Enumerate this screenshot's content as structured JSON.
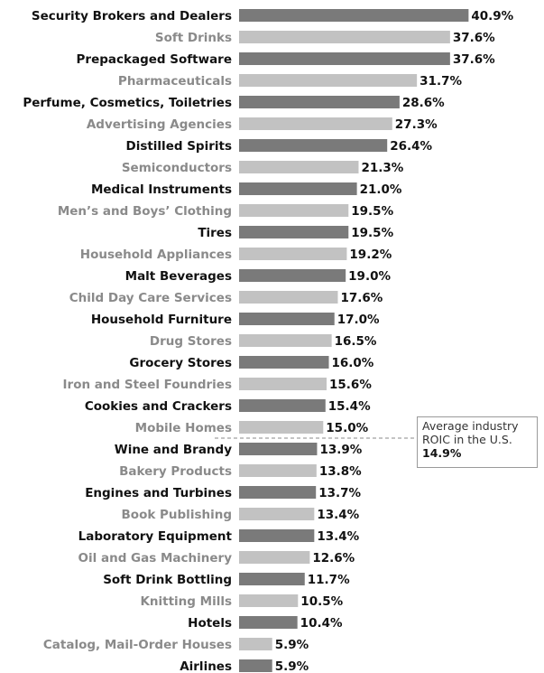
{
  "chart_data": {
    "type": "bar",
    "orientation": "horizontal",
    "unit": "%",
    "categories": [
      "Security Brokers and Dealers",
      "Soft Drinks",
      "Prepackaged Software",
      "Pharmaceuticals",
      "Perfume, Cosmetics, Toiletries",
      "Advertising Agencies",
      "Distilled Spirits",
      "Semiconductors",
      "Medical Instruments",
      "Men’s and Boys’ Clothing",
      "Tires",
      "Household Appliances",
      "Malt Beverages",
      "Child Day Care Services",
      "Household Furniture",
      "Drug Stores",
      "Grocery Stores",
      "Iron and Steel Foundries",
      "Cookies and Crackers",
      "Mobile Homes",
      "Wine and Brandy",
      "Bakery Products",
      "Engines and Turbines",
      "Book Publishing",
      "Laboratory Equipment",
      "Oil and Gas Machinery",
      "Soft Drink Bottling",
      "Knitting Mills",
      "Hotels",
      "Catalog, Mail-Order Houses",
      "Airlines"
    ],
    "values": [
      40.9,
      37.6,
      37.6,
      31.7,
      28.6,
      27.3,
      26.4,
      21.3,
      21.0,
      19.5,
      19.5,
      19.2,
      19.0,
      17.6,
      17.0,
      16.5,
      16.0,
      15.6,
      15.4,
      15.0,
      13.9,
      13.8,
      13.7,
      13.4,
      13.4,
      12.6,
      11.7,
      10.5,
      10.4,
      5.9,
      5.9
    ],
    "value_labels": [
      "40.9%",
      "37.6%",
      "37.6%",
      "31.7%",
      "28.6%",
      "27.3%",
      "26.4%",
      "21.3%",
      "21.0%",
      "19.5%",
      "19.5%",
      "19.2%",
      "19.0%",
      "17.6%",
      "17.0%",
      "16.5%",
      "16.0%",
      "15.6%",
      "15.4%",
      "15.0%",
      "13.9%",
      "13.8%",
      "13.7%",
      "13.4%",
      "13.4%",
      "12.6%",
      "11.7%",
      "10.5%",
      "10.4%",
      "5.9%",
      "5.9%"
    ],
    "colors": {
      "dark_bar": "#7a7a7a",
      "light_bar": "#c2c2c2",
      "dark_label": "#111111",
      "light_label": "#8a8a8a",
      "value_label": "#111111",
      "reference_line": "#8a8a8a"
    },
    "styling": "alternating dark and light rows, starting dark",
    "reference_line": {
      "value": 14.9,
      "style": "dashed",
      "annotation_text": "Average industry ROIC in the U.S.",
      "annotation_value": "14.9%"
    },
    "xlim": [
      0,
      41
    ],
    "grid": false,
    "legend": "none"
  }
}
